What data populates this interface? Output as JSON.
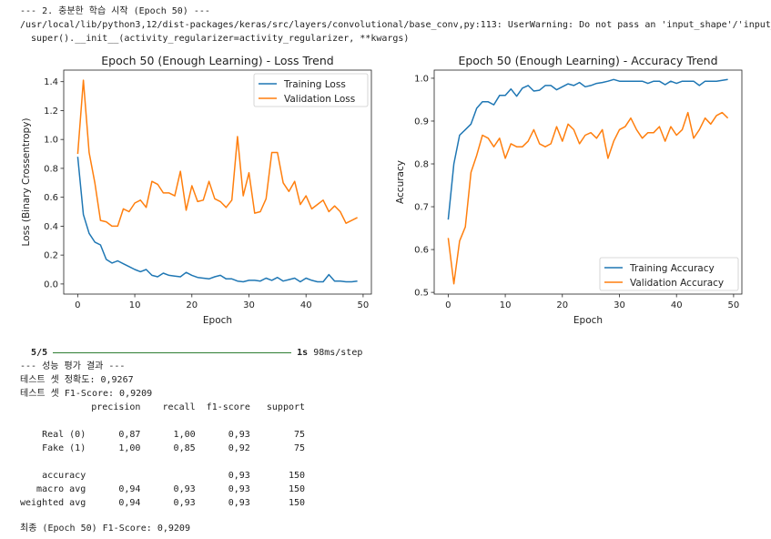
{
  "header_lines": [
    "--- 2. 충분한 학습 시작 (Epoch 50) ---",
    "/usr/local/lib/python3,12/dist-packages/keras/src/layers/convolutional/base_conv,py:113: UserWarning: Do not pass an 'input_shape'/'input_",
    "  super().__init__(activity_regularizer=activity_regularizer, **kwargs)"
  ],
  "progress": {
    "steps": "5/5",
    "time": "1s",
    "rate": "98ms/step",
    "fraction": 1.0
  },
  "results": {
    "heading": "--- 성능 평가 결과 ---",
    "accuracy_line": "테스트 셋 정확도: 0,9267",
    "f1_line": "테스트 셋 F1-Score: 0,9209",
    "final_line": "최종 (Epoch 50) F1-Score: 0,9209"
  },
  "report": {
    "columns": [
      "precision",
      "recall",
      "f1-score",
      "support"
    ],
    "rows": [
      [
        "Real (0)",
        "0,87",
        "1,00",
        "0,93",
        "75"
      ],
      [
        "Fake (1)",
        "1,00",
        "0,85",
        "0,92",
        "75"
      ],
      [
        "accuracy",
        "",
        "",
        "0,93",
        "150"
      ],
      [
        "macro avg",
        "0,94",
        "0,93",
        "0,93",
        "150"
      ],
      [
        "weighted avg",
        "0,94",
        "0,93",
        "0,93",
        "150"
      ]
    ]
  },
  "chart_data": [
    {
      "type": "line",
      "title": "Epoch 50 (Enough Learning) - Loss Trend",
      "xlabel": "Epoch",
      "ylabel": "Loss (Binary Crossentropy)",
      "xticks": [
        0,
        10,
        20,
        30,
        40,
        50
      ],
      "yticks": [
        0.0,
        0.2,
        0.4,
        0.6,
        0.8,
        1.0,
        1.2,
        1.4
      ],
      "ytick_labels": [
        "0.0",
        "0.2",
        "0.4",
        "0.6",
        "0.8",
        "1.0",
        "1.2",
        "1.4"
      ],
      "xlim": [
        -2.45,
        51.45
      ],
      "ylim": [
        -0.07,
        1.48
      ],
      "legend": "top-right",
      "grid": false,
      "series": [
        {
          "name": "Training Loss",
          "color": "#1f77b4",
          "values": [
            0.88,
            0.48,
            0.35,
            0.29,
            0.27,
            0.17,
            0.145,
            0.16,
            0.14,
            0.12,
            0.1,
            0.085,
            0.1,
            0.06,
            0.05,
            0.075,
            0.06,
            0.055,
            0.05,
            0.08,
            0.06,
            0.045,
            0.04,
            0.035,
            0.05,
            0.06,
            0.035,
            0.035,
            0.02,
            0.015,
            0.025,
            0.025,
            0.02,
            0.04,
            0.025,
            0.045,
            0.02,
            0.03,
            0.04,
            0.015,
            0.04,
            0.025,
            0.015,
            0.015,
            0.065,
            0.02,
            0.02,
            0.015,
            0.015,
            0.02
          ]
        },
        {
          "name": "Validation Loss",
          "color": "#ff7f0e",
          "values": [
            0.9,
            1.41,
            0.91,
            0.7,
            0.44,
            0.43,
            0.4,
            0.4,
            0.52,
            0.5,
            0.56,
            0.58,
            0.53,
            0.71,
            0.69,
            0.63,
            0.63,
            0.61,
            0.78,
            0.51,
            0.68,
            0.57,
            0.58,
            0.71,
            0.59,
            0.57,
            0.53,
            0.58,
            1.02,
            0.61,
            0.77,
            0.49,
            0.5,
            0.59,
            0.91,
            0.91,
            0.7,
            0.64,
            0.71,
            0.55,
            0.61,
            0.52,
            0.55,
            0.58,
            0.5,
            0.54,
            0.5,
            0.42,
            0.44,
            0.46
          ]
        }
      ]
    },
    {
      "type": "line",
      "title": "Epoch 50 (Enough Learning) - Accuracy Trend",
      "xlabel": "Epoch",
      "ylabel": "Accuracy",
      "xticks": [
        0,
        10,
        20,
        30,
        40,
        50
      ],
      "yticks": [
        0.5,
        0.6,
        0.7,
        0.8,
        0.9,
        1.0
      ],
      "ytick_labels": [
        "0.5",
        "0.6",
        "0.7",
        "0.8",
        "0.9",
        "1.0"
      ],
      "xlim": [
        -2.45,
        51.45
      ],
      "ylim": [
        0.496,
        1.019
      ],
      "legend": "bottom-right",
      "grid": false,
      "series": [
        {
          "name": "Training Accuracy",
          "color": "#1f77b4",
          "values": [
            0.67,
            0.8,
            0.867,
            0.88,
            0.893,
            0.93,
            0.945,
            0.945,
            0.938,
            0.96,
            0.96,
            0.975,
            0.958,
            0.977,
            0.983,
            0.97,
            0.972,
            0.983,
            0.983,
            0.973,
            0.98,
            0.987,
            0.983,
            0.99,
            0.98,
            0.983,
            0.988,
            0.99,
            0.993,
            0.997,
            0.993,
            0.993,
            0.993,
            0.993,
            0.993,
            0.988,
            0.993,
            0.993,
            0.985,
            0.993,
            0.988,
            0.993,
            0.993,
            0.993,
            0.983,
            0.993,
            0.993,
            0.993,
            0.995,
            0.997
          ]
        },
        {
          "name": "Validation Accuracy",
          "color": "#ff7f0e",
          "values": [
            0.627,
            0.52,
            0.62,
            0.653,
            0.78,
            0.82,
            0.867,
            0.86,
            0.84,
            0.86,
            0.813,
            0.847,
            0.84,
            0.84,
            0.853,
            0.88,
            0.847,
            0.84,
            0.847,
            0.887,
            0.853,
            0.893,
            0.88,
            0.847,
            0.867,
            0.873,
            0.86,
            0.88,
            0.813,
            0.853,
            0.88,
            0.887,
            0.907,
            0.88,
            0.86,
            0.873,
            0.873,
            0.887,
            0.853,
            0.887,
            0.867,
            0.88,
            0.92,
            0.86,
            0.88,
            0.907,
            0.893,
            0.913,
            0.92,
            0.907
          ]
        }
      ]
    }
  ]
}
